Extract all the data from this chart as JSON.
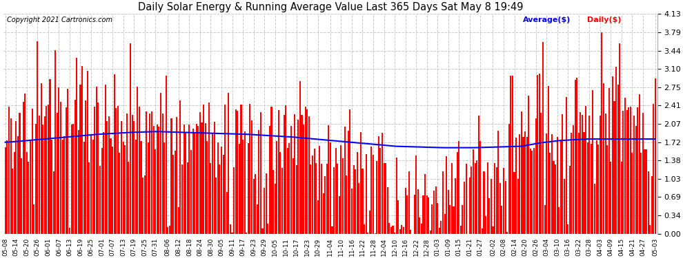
{
  "title": "Daily Solar Energy & Running Average Value Last 365 Days Sat May 8 19:49",
  "copyright": "Copyright 2021 Cartronics.com",
  "legend_avg": "Average($)",
  "legend_daily": "Daily($)",
  "avg_color": "blue",
  "daily_color": "red",
  "background_color": "white",
  "grid_color": "#bbbbbb",
  "ylim": [
    0.0,
    4.13
  ],
  "yticks": [
    0.0,
    0.34,
    0.69,
    1.03,
    1.38,
    1.72,
    2.07,
    2.41,
    2.75,
    3.1,
    3.44,
    3.79,
    4.13
  ],
  "x_labels": [
    "05-08",
    "05-14",
    "05-20",
    "05-26",
    "06-01",
    "06-07",
    "06-13",
    "06-19",
    "06-25",
    "07-01",
    "07-07",
    "07-13",
    "07-19",
    "07-25",
    "07-31",
    "08-06",
    "08-12",
    "08-18",
    "08-24",
    "08-30",
    "09-05",
    "09-11",
    "09-17",
    "09-23",
    "09-29",
    "10-05",
    "10-11",
    "10-17",
    "10-23",
    "10-29",
    "11-04",
    "11-10",
    "11-16",
    "11-22",
    "11-28",
    "12-04",
    "12-10",
    "12-16",
    "12-22",
    "12-28",
    "01-03",
    "01-09",
    "01-15",
    "01-21",
    "01-27",
    "02-02",
    "02-08",
    "02-14",
    "02-20",
    "02-26",
    "03-04",
    "03-10",
    "03-16",
    "03-22",
    "03-28",
    "04-03",
    "04-09",
    "04-15",
    "04-21",
    "04-27",
    "05-03"
  ],
  "num_bars": 365,
  "avg_line": [
    1.72,
    1.722,
    1.724,
    1.726,
    1.728,
    1.73,
    1.733,
    1.736,
    1.739,
    1.742,
    1.745,
    1.748,
    1.751,
    1.754,
    1.757,
    1.76,
    1.763,
    1.766,
    1.769,
    1.772,
    1.775,
    1.778,
    1.781,
    1.784,
    1.787,
    1.79,
    1.793,
    1.796,
    1.799,
    1.802,
    1.805,
    1.808,
    1.811,
    1.814,
    1.817,
    1.82,
    1.823,
    1.826,
    1.829,
    1.832,
    1.835,
    1.838,
    1.841,
    1.844,
    1.847,
    1.85,
    1.853,
    1.856,
    1.859,
    1.862,
    1.865,
    1.867,
    1.869,
    1.871,
    1.873,
    1.875,
    1.877,
    1.879,
    1.881,
    1.883,
    1.885,
    1.887,
    1.889,
    1.891,
    1.893,
    1.895,
    1.897,
    1.899,
    1.901,
    1.903,
    1.905,
    1.906,
    1.907,
    1.908,
    1.909,
    1.91,
    1.911,
    1.912,
    1.913,
    1.914,
    1.915,
    1.916,
    1.917,
    1.918,
    1.919,
    1.92,
    1.919,
    1.918,
    1.917,
    1.916,
    1.915,
    1.914,
    1.913,
    1.912,
    1.911,
    1.91,
    1.909,
    1.908,
    1.907,
    1.906,
    1.905,
    1.904,
    1.903,
    1.902,
    1.901,
    1.9,
    1.899,
    1.898,
    1.897,
    1.896,
    1.895,
    1.894,
    1.893,
    1.892,
    1.891,
    1.89,
    1.889,
    1.888,
    1.887,
    1.886,
    1.885,
    1.884,
    1.883,
    1.882,
    1.881,
    1.88,
    1.879,
    1.878,
    1.877,
    1.876,
    1.875,
    1.874,
    1.873,
    1.872,
    1.871,
    1.87,
    1.868,
    1.866,
    1.864,
    1.862,
    1.86,
    1.858,
    1.856,
    1.854,
    1.852,
    1.85,
    1.848,
    1.846,
    1.844,
    1.842,
    1.84,
    1.838,
    1.836,
    1.834,
    1.832,
    1.83,
    1.828,
    1.826,
    1.824,
    1.822,
    1.82,
    1.817,
    1.814,
    1.811,
    1.808,
    1.805,
    1.802,
    1.799,
    1.796,
    1.793,
    1.79,
    1.787,
    1.784,
    1.781,
    1.778,
    1.775,
    1.772,
    1.769,
    1.766,
    1.763,
    1.76,
    1.757,
    1.754,
    1.751,
    1.748,
    1.745,
    1.742,
    1.739,
    1.736,
    1.733,
    1.73,
    1.727,
    1.724,
    1.721,
    1.718,
    1.715,
    1.712,
    1.709,
    1.706,
    1.703,
    1.7,
    1.697,
    1.694,
    1.691,
    1.688,
    1.685,
    1.682,
    1.679,
    1.676,
    1.673,
    1.67,
    1.667,
    1.664,
    1.661,
    1.658,
    1.655,
    1.652,
    1.649,
    1.646,
    1.643,
    1.642,
    1.641,
    1.64,
    1.639,
    1.638,
    1.637,
    1.636,
    1.635,
    1.634,
    1.633,
    1.632,
    1.631,
    1.63,
    1.629,
    1.628,
    1.627,
    1.626,
    1.625,
    1.624,
    1.623,
    1.622,
    1.621,
    1.62,
    1.619,
    1.618,
    1.617,
    1.617,
    1.617,
    1.617,
    1.617,
    1.617,
    1.617,
    1.617,
    1.617,
    1.617,
    1.617,
    1.617,
    1.617,
    1.617,
    1.617,
    1.617,
    1.617,
    1.617,
    1.618,
    1.619,
    1.62,
    1.621,
    1.622,
    1.623,
    1.624,
    1.625,
    1.626,
    1.627,
    1.628,
    1.629,
    1.63,
    1.631,
    1.632,
    1.633,
    1.634,
    1.635,
    1.636,
    1.637,
    1.638,
    1.639,
    1.64,
    1.641,
    1.642,
    1.643,
    1.644,
    1.65,
    1.656,
    1.662,
    1.668,
    1.674,
    1.68,
    1.686,
    1.692,
    1.698,
    1.704,
    1.71,
    1.714,
    1.718,
    1.722,
    1.726,
    1.73,
    1.734,
    1.738,
    1.742,
    1.746,
    1.75,
    1.752,
    1.754,
    1.756,
    1.758,
    1.76,
    1.762,
    1.764,
    1.766,
    1.768,
    1.77,
    1.772,
    1.774,
    1.776,
    1.778,
    1.78,
    1.78,
    1.78,
    1.78,
    1.78,
    1.78,
    1.78,
    1.78,
    1.78,
    1.78,
    1.78,
    1.78,
    1.78,
    1.78,
    1.78,
    1.78,
    1.78,
    1.78,
    1.78,
    1.78,
    1.78,
    1.78,
    1.78,
    1.78,
    1.78,
    1.78,
    1.78,
    1.78,
    1.78,
    1.78,
    1.78,
    1.78,
    1.78,
    1.78,
    1.78,
    1.78,
    1.78,
    1.78,
    1.78,
    1.78
  ],
  "daily_seed": 123,
  "bar_width": 0.8
}
